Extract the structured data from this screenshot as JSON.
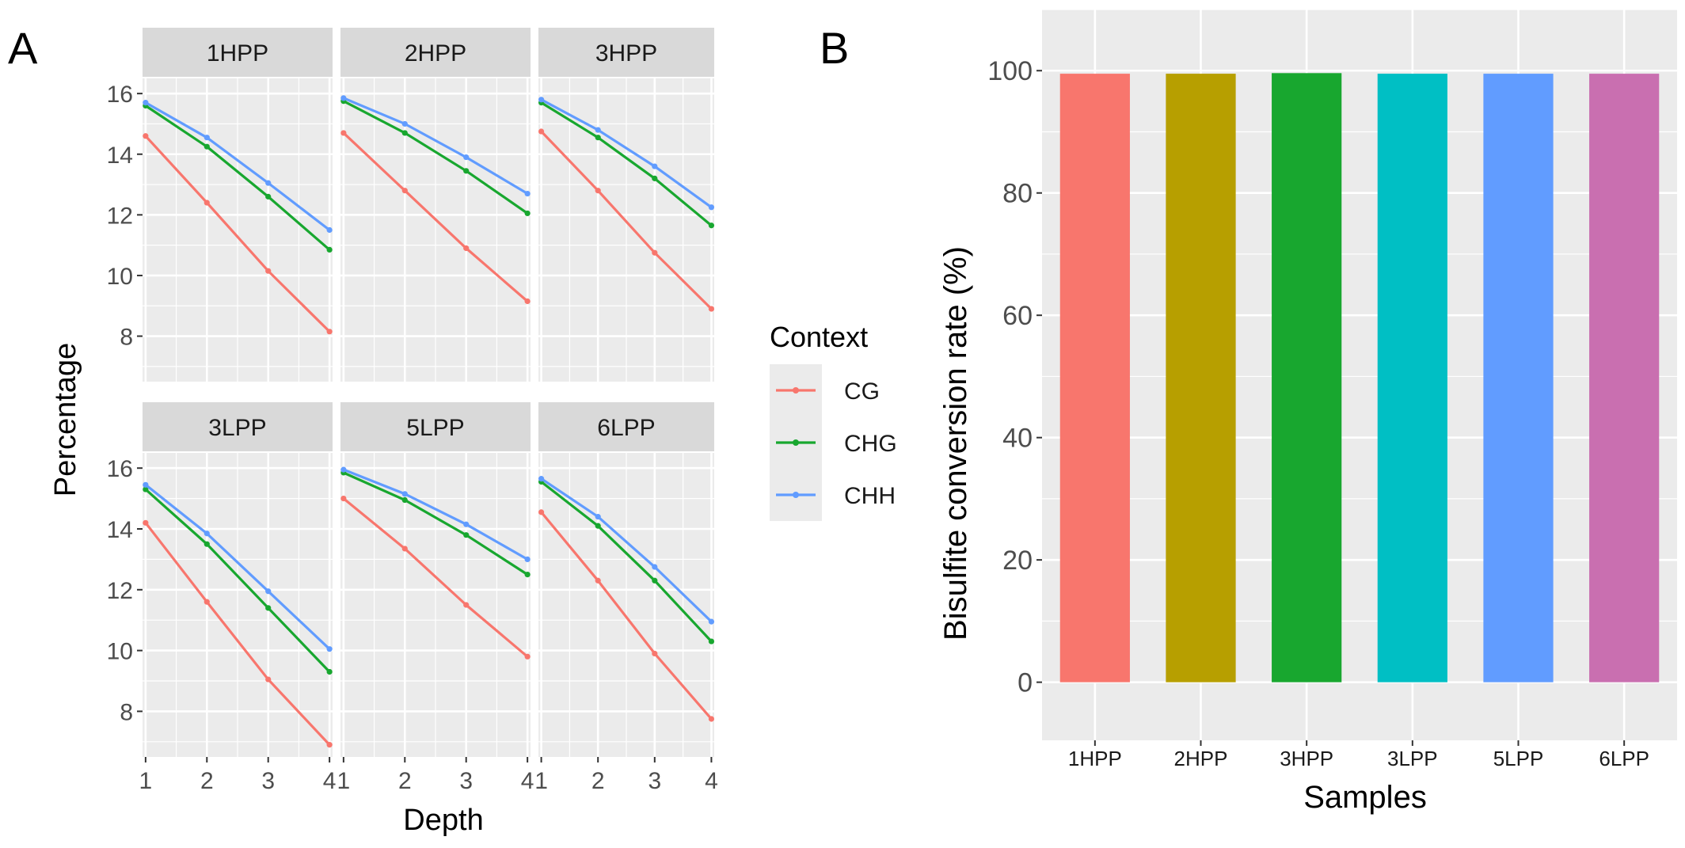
{
  "panel_labels": {
    "a": "A",
    "b": "B"
  },
  "colors": {
    "CG": "#F8766D",
    "CHG": "#18A72F",
    "CHH": "#619CFF",
    "panel_bg": "#EBEBEB",
    "strip_bg": "#D9D9D9",
    "grid": "#FFFFFF",
    "text": "#1A1A1A",
    "axis_text": "#4D4D4D"
  },
  "chart_data": [
    {
      "type": "line",
      "id": "A",
      "xlabel": "Depth",
      "ylabel": "Percentage",
      "x": [
        1,
        2,
        3,
        4
      ],
      "xticks": [
        "1",
        "2",
        "3",
        "4"
      ],
      "xlim": [
        0.95,
        4.05
      ],
      "ylim": [
        6.5,
        16.5
      ],
      "yticks": [
        8,
        10,
        12,
        14,
        16
      ],
      "ytick_labels": [
        "8",
        "10",
        "12",
        "14",
        "16"
      ],
      "legend": {
        "title": "Context",
        "entries": [
          "CG",
          "CHG",
          "CHH"
        ],
        "position": "right"
      },
      "facets": [
        {
          "name": "1HPP",
          "series": [
            {
              "name": "CG",
              "values": [
                14.6,
                12.4,
                10.15,
                8.15
              ]
            },
            {
              "name": "CHG",
              "values": [
                15.6,
                14.25,
                12.6,
                10.85
              ]
            },
            {
              "name": "CHH",
              "values": [
                15.7,
                14.55,
                13.05,
                11.5
              ]
            }
          ]
        },
        {
          "name": "2HPP",
          "series": [
            {
              "name": "CG",
              "values": [
                14.7,
                12.8,
                10.9,
                9.15
              ]
            },
            {
              "name": "CHG",
              "values": [
                15.75,
                14.7,
                13.45,
                12.05
              ]
            },
            {
              "name": "CHH",
              "values": [
                15.85,
                15.0,
                13.9,
                12.7
              ]
            }
          ]
        },
        {
          "name": "3HPP",
          "series": [
            {
              "name": "CG",
              "values": [
                14.75,
                12.8,
                10.75,
                8.9
              ]
            },
            {
              "name": "CHG",
              "values": [
                15.7,
                14.55,
                13.2,
                11.65
              ]
            },
            {
              "name": "CHH",
              "values": [
                15.8,
                14.8,
                13.6,
                12.25
              ]
            }
          ]
        },
        {
          "name": "3LPP",
          "series": [
            {
              "name": "CG",
              "values": [
                14.2,
                11.6,
                9.05,
                6.9
              ]
            },
            {
              "name": "CHG",
              "values": [
                15.3,
                13.5,
                11.4,
                9.3
              ]
            },
            {
              "name": "CHH",
              "values": [
                15.45,
                13.85,
                11.95,
                10.05
              ]
            }
          ]
        },
        {
          "name": "5LPP",
          "series": [
            {
              "name": "CG",
              "values": [
                15.0,
                13.35,
                11.5,
                9.8
              ]
            },
            {
              "name": "CHG",
              "values": [
                15.85,
                14.95,
                13.8,
                12.5
              ]
            },
            {
              "name": "CHH",
              "values": [
                15.95,
                15.15,
                14.15,
                13.0
              ]
            }
          ]
        },
        {
          "name": "6LPP",
          "series": [
            {
              "name": "CG",
              "values": [
                14.55,
                12.3,
                9.9,
                7.75
              ]
            },
            {
              "name": "CHG",
              "values": [
                15.55,
                14.1,
                12.3,
                10.3
              ]
            },
            {
              "name": "CHH",
              "values": [
                15.65,
                14.4,
                12.75,
                10.95
              ]
            }
          ]
        }
      ]
    },
    {
      "type": "bar",
      "id": "B",
      "xlabel": "Samples",
      "ylabel": "Bisulfite conversion rate (%)",
      "categories": [
        "1HPP",
        "2HPP",
        "3HPP",
        "3LPP",
        "5LPP",
        "6LPP"
      ],
      "values": [
        99.5,
        99.5,
        99.6,
        99.5,
        99.5,
        99.5
      ],
      "bar_colors": [
        "#F8766D",
        "#B79F00",
        "#18A72F",
        "#00BFC4",
        "#619CFF",
        "#C96FB0"
      ],
      "ylim": [
        -9.5,
        110
      ],
      "yticks": [
        0,
        20,
        40,
        60,
        80,
        100
      ],
      "ytick_labels": [
        "0",
        "20",
        "40",
        "60",
        "80",
        "100"
      ]
    }
  ]
}
